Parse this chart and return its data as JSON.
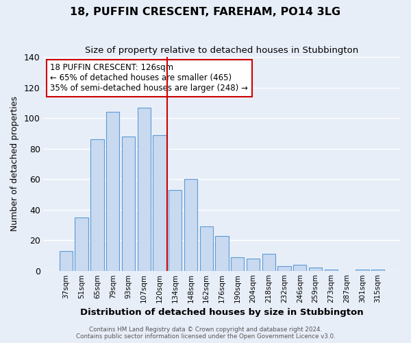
{
  "title": "18, PUFFIN CRESCENT, FAREHAM, PO14 3LG",
  "subtitle": "Size of property relative to detached houses in Stubbington",
  "xlabel": "Distribution of detached houses by size in Stubbington",
  "ylabel": "Number of detached properties",
  "bar_labels": [
    "37sqm",
    "51sqm",
    "65sqm",
    "79sqm",
    "93sqm",
    "107sqm",
    "120sqm",
    "134sqm",
    "148sqm",
    "162sqm",
    "176sqm",
    "190sqm",
    "204sqm",
    "218sqm",
    "232sqm",
    "246sqm",
    "259sqm",
    "273sqm",
    "287sqm",
    "301sqm",
    "315sqm"
  ],
  "bar_values": [
    13,
    35,
    86,
    104,
    88,
    107,
    89,
    53,
    60,
    29,
    23,
    9,
    8,
    11,
    3,
    4,
    2,
    1,
    0,
    1,
    1
  ],
  "bar_color": "#c8d9f0",
  "bar_edgecolor": "#5b9bd5",
  "vline_x": 6.5,
  "vline_color": "#cc0000",
  "ylim": [
    0,
    140
  ],
  "yticks": [
    0,
    20,
    40,
    60,
    80,
    100,
    120,
    140
  ],
  "bg_color": "#e8eef8",
  "grid_color": "#ffffff",
  "annotation_title": "18 PUFFIN CRESCENT: 126sqm",
  "annotation_line1": "← 65% of detached houses are smaller (465)",
  "annotation_line2": "35% of semi-detached houses are larger (248) →",
  "annotation_box_color": "#ffffff",
  "annotation_border_color": "#cc0000",
  "footer_line1": "Contains HM Land Registry data © Crown copyright and database right 2024.",
  "footer_line2": "Contains public sector information licensed under the Open Government Licence v3.0."
}
